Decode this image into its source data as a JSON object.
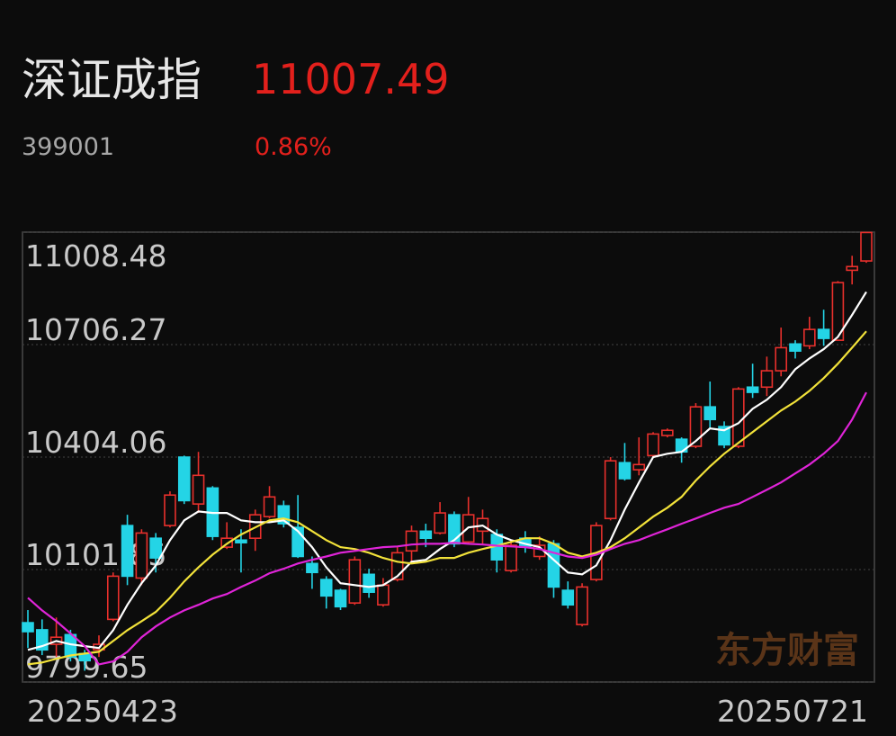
{
  "header": {
    "title": "深证成指",
    "price": "11007.49",
    "code": "399001",
    "change": "0.86%"
  },
  "chart_data": {
    "type": "candlestick",
    "categories": [
      "20250423",
      null,
      null,
      null,
      null,
      null,
      null,
      null,
      null,
      null,
      null,
      null,
      null,
      null,
      null,
      null,
      null,
      null,
      null,
      null,
      null,
      null,
      null,
      null,
      null,
      null,
      null,
      null,
      null,
      null,
      null,
      null,
      null,
      null,
      null,
      null,
      null,
      null,
      null,
      null,
      null,
      null,
      null,
      null,
      null,
      null,
      null,
      null,
      null,
      null,
      null,
      null,
      null,
      null,
      null,
      null,
      null,
      null,
      null,
      "20250721"
    ],
    "open": [
      9959,
      9940,
      9901,
      9927,
      9876,
      9886,
      9968,
      10220,
      10079,
      10186,
      10220,
      10404,
      10278,
      10321,
      10162,
      10181,
      10186,
      10244,
      10273,
      10215,
      10118,
      10075,
      10046,
      10012,
      10089,
      10007,
      10075,
      10152,
      10205,
      10200,
      10249,
      10176,
      10205,
      10196,
      10099,
      10186,
      10137,
      10171,
      10046,
      9954,
      10075,
      10239,
      10389,
      10370,
      10408,
      10462,
      10452,
      10433,
      10539,
      10486,
      10433,
      10592,
      10592,
      10636,
      10708,
      10703,
      10747,
      10718,
      10906,
      10931
    ],
    "close": [
      9935,
      9886,
      9920,
      9867,
      9857,
      9901,
      10084,
      10084,
      10200,
      10133,
      10302,
      10287,
      10355,
      10191,
      10186,
      10174,
      10249,
      10297,
      10225,
      10137,
      10094,
      10031,
      10002,
      10128,
      10041,
      10060,
      10147,
      10205,
      10186,
      10254,
      10171,
      10249,
      10239,
      10128,
      10167,
      10162,
      10167,
      10055,
      10007,
      10055,
      10220,
      10394,
      10346,
      10384,
      10466,
      10476,
      10418,
      10539,
      10505,
      10437,
      10587,
      10578,
      10636,
      10698,
      10689,
      10747,
      10723,
      10873,
      10916,
      11007.49
    ],
    "high": [
      9993,
      9968,
      9973,
      9940,
      9886,
      9925,
      10094,
      10249,
      10210,
      10200,
      10312,
      10408,
      10418,
      10326,
      10229,
      10210,
      10263,
      10326,
      10287,
      10302,
      10137,
      10084,
      10050,
      10137,
      10104,
      10079,
      10162,
      10220,
      10225,
      10283,
      10258,
      10297,
      10263,
      10210,
      10181,
      10205,
      10191,
      10181,
      10070,
      10065,
      10229,
      10404,
      10442,
      10457,
      10471,
      10481,
      10457,
      10549,
      10607,
      10500,
      10592,
      10655,
      10674,
      10752,
      10718,
      10781,
      10800,
      10877,
      10945,
      11008.48
    ],
    "low": [
      9891,
      9872,
      9867,
      9855,
      9830,
      9867,
      9963,
      10060,
      10060,
      10094,
      10215,
      10278,
      10254,
      10181,
      10157,
      10094,
      10152,
      10239,
      10215,
      10133,
      10050,
      9997,
      9993,
      10007,
      10026,
      10002,
      10070,
      10118,
      10162,
      10196,
      10162,
      10171,
      10171,
      10094,
      10094,
      10147,
      10128,
      10026,
      9997,
      9949,
      10070,
      10234,
      10341,
      10355,
      10404,
      10457,
      10389,
      10428,
      10481,
      10428,
      10428,
      10563,
      10568,
      10621,
      10669,
      10694,
      10703,
      10718,
      10868,
      10926
    ],
    "up_color": "#e8302c",
    "down_color": "#24d4e6",
    "overlays": [
      {
        "color": "#ffffff",
        "values": [
          9886,
          9896,
          9910,
          9901,
          9896,
          9891,
          9939,
          10007,
          10065,
          10113,
          10181,
          10234,
          10258,
          10254,
          10254,
          10234,
          10229,
          10229,
          10234,
          10205,
          10162,
          10108,
          10065,
          10060,
          10055,
          10060,
          10084,
          10123,
          10128,
          10157,
          10181,
          10215,
          10220,
          10196,
          10181,
          10171,
          10162,
          10128,
          10094,
          10089,
          10113,
          10181,
          10263,
          10336,
          10404,
          10413,
          10418,
          10447,
          10481,
          10476,
          10495,
          10534,
          10558,
          10592,
          10640,
          10669,
          10694,
          10727,
          10786,
          10848
        ]
      },
      {
        "color": "#f2e23a",
        "values": [
          9847,
          9852,
          9862,
          9871,
          9876,
          9881,
          9910,
          9939,
          9963,
          9988,
          10026,
          10070,
          10108,
          10142,
          10171,
          10196,
          10215,
          10234,
          10239,
          10229,
          10205,
          10181,
          10162,
          10157,
          10147,
          10133,
          10123,
          10118,
          10123,
          10133,
          10133,
          10147,
          10157,
          10166,
          10176,
          10186,
          10186,
          10171,
          10147,
          10137,
          10147,
          10162,
          10186,
          10215,
          10244,
          10268,
          10297,
          10341,
          10379,
          10413,
          10442,
          10471,
          10500,
          10529,
          10553,
          10582,
          10616,
          10655,
          10698,
          10742
        ]
      },
      {
        "color": "#e024d8",
        "values": [
          10026,
          9992,
          9963,
          9930,
          9896,
          9847,
          9855,
          9881,
          9920,
          9949,
          9973,
          9992,
          10007,
          10024,
          10036,
          10055,
          10072,
          10092,
          10104,
          10118,
          10128,
          10137,
          10147,
          10152,
          10157,
          10162,
          10164,
          10169,
          10171,
          10171,
          10174,
          10171,
          10169,
          10166,
          10164,
          10162,
          10157,
          10147,
          10137,
          10133,
          10142,
          10157,
          10171,
          10181,
          10196,
          10210,
          10225,
          10239,
          10254,
          10268,
          10278,
          10297,
          10316,
          10336,
          10360,
          10384,
          10413,
          10447,
          10505,
          10578
        ]
      }
    ],
    "ylim": [
      9799.65,
      11008.48
    ],
    "yticks": [
      11008.48,
      10706.27,
      10404.06,
      10101.85,
      9799.65
    ],
    "grid": true,
    "watermark": "东方财富"
  }
}
